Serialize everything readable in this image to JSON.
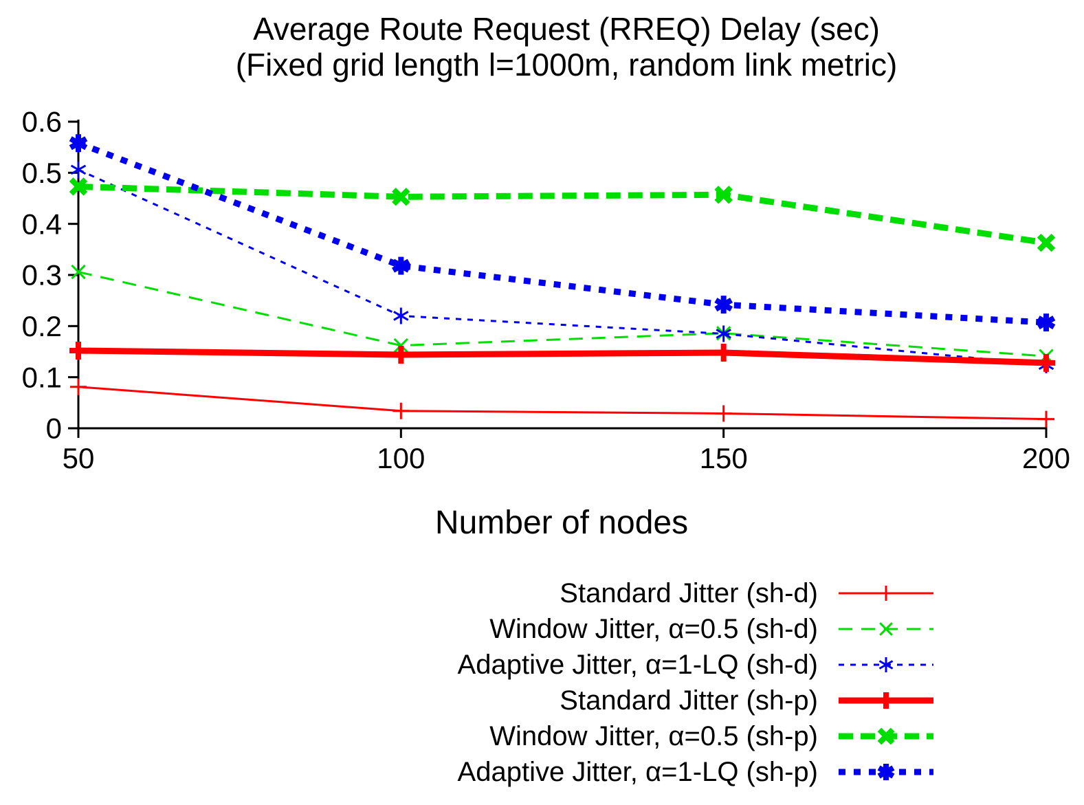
{
  "title": {
    "line1": "Average Route Request (RREQ) Delay (sec)",
    "line2": "(Fixed grid length l=1000m, random link metric)"
  },
  "chart_data": {
    "type": "line",
    "xlabel": "Number of nodes",
    "ylabel": "",
    "xlim": [
      50,
      200
    ],
    "ylim": [
      0,
      0.6
    ],
    "xticks": [
      50,
      100,
      150,
      200
    ],
    "xtick_labels": [
      "50",
      "100",
      "150",
      "200"
    ],
    "yticks": [
      0,
      0.1,
      0.2,
      0.3,
      0.4,
      0.5,
      0.6
    ],
    "ytick_labels": [
      "0",
      "0.1",
      "0.2",
      "0.3",
      "0.4",
      "0.5",
      "0.6"
    ],
    "grid": false,
    "legend_position": "below-right",
    "x": [
      50,
      100,
      150,
      200
    ],
    "series": [
      {
        "name": "Standard Jitter (sh-d)",
        "color": "#ff0000",
        "style": "solid",
        "weight": "thin",
        "marker": "plus",
        "values": [
          0.081,
          0.034,
          0.029,
          0.018
        ]
      },
      {
        "name": "Window Jitter, α=0.5 (sh-d)",
        "color": "#00dd00",
        "style": "dashed",
        "weight": "thin",
        "marker": "cross",
        "values": [
          0.306,
          0.162,
          0.186,
          0.141
        ]
      },
      {
        "name": "Adaptive Jitter, α=1-LQ (sh-d)",
        "color": "#0000ee",
        "style": "dotted",
        "weight": "thin",
        "marker": "asterisk",
        "values": [
          0.506,
          0.22,
          0.185,
          0.124
        ]
      },
      {
        "name": "Standard Jitter (sh-p)",
        "color": "#ff0000",
        "style": "solid",
        "weight": "thick",
        "marker": "plus",
        "values": [
          0.152,
          0.144,
          0.148,
          0.128
        ]
      },
      {
        "name": "Window Jitter, α=0.5 (sh-p)",
        "color": "#00dd00",
        "style": "dashed",
        "weight": "thick",
        "marker": "cross",
        "values": [
          0.473,
          0.453,
          0.457,
          0.363
        ]
      },
      {
        "name": "Adaptive Jitter, α=1-LQ (sh-p)",
        "color": "#0000ee",
        "style": "dotted",
        "weight": "thick",
        "marker": "asterisk",
        "values": [
          0.558,
          0.318,
          0.242,
          0.207
        ]
      }
    ]
  }
}
